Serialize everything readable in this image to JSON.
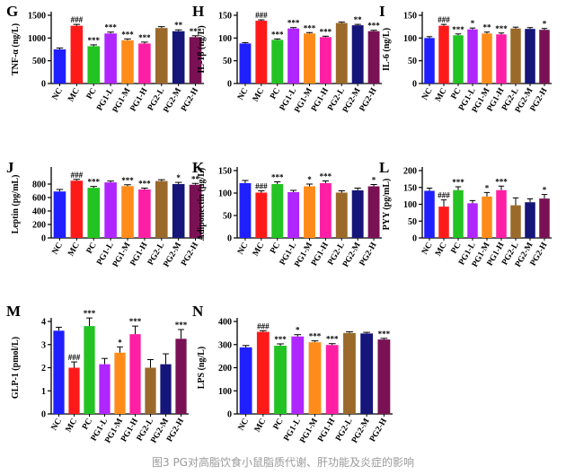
{
  "caption": "图3 PG对高脂饮食小鼠脂质代谢、肝功能及炎症的影响",
  "colors": [
    "#1f1fff",
    "#ff1a1a",
    "#22c322",
    "#b026ff",
    "#ff8c1a",
    "#ff1fa5",
    "#9b6a2a",
    "#15157a",
    "#7a1155"
  ],
  "categories": [
    "NC",
    "MC",
    "PC",
    "PG1-L",
    "PG1-M",
    "PG1-H",
    "PG2-L",
    "PG2-M",
    "PG2-H"
  ],
  "chart_data": [
    {
      "type": "bar",
      "panel": "G",
      "ylabel": "TNF-α (ng/L)",
      "ylim": [
        0,
        1500
      ],
      "yticks": [
        0,
        500,
        1000,
        1500
      ],
      "values": [
        750,
        1270,
        820,
        1100,
        950,
        880,
        1220,
        1150,
        1020
      ],
      "errors": [
        30,
        30,
        30,
        30,
        30,
        30,
        30,
        30,
        30
      ],
      "annotations": [
        "",
        "###",
        "***",
        "***",
        "***",
        "***",
        "",
        "**",
        "***"
      ]
    },
    {
      "type": "bar",
      "panel": "H",
      "ylabel": "IL-1β (ng/L)",
      "ylim": [
        0,
        150
      ],
      "yticks": [
        0,
        50,
        100,
        150
      ],
      "values": [
        88,
        138,
        96,
        121,
        110,
        102,
        133,
        128,
        115
      ],
      "errors": [
        2,
        2,
        2,
        2,
        2,
        2,
        2,
        2,
        2
      ],
      "annotations": [
        "",
        "###",
        "***",
        "***",
        "***",
        "***",
        "",
        "**",
        "***"
      ]
    },
    {
      "type": "bar",
      "panel": "I",
      "ylabel": "IL-6 (ng/L)",
      "ylim": [
        0,
        150
      ],
      "yticks": [
        0,
        50,
        100,
        150
      ],
      "values": [
        100,
        127,
        106,
        119,
        110,
        108,
        121,
        120,
        118
      ],
      "errors": [
        3,
        3,
        3,
        3,
        3,
        3,
        3,
        3,
        3
      ],
      "annotations": [
        "",
        "###",
        "***",
        "*",
        "**",
        "***",
        "",
        "",
        "*"
      ]
    },
    {
      "type": "bar",
      "panel": "J",
      "ylabel": "Leptin (pg/mL)",
      "ylim": [
        0,
        1000
      ],
      "yticks": [
        0,
        200,
        400,
        600,
        800
      ],
      "values": [
        690,
        850,
        745,
        825,
        770,
        720,
        845,
        800,
        790
      ],
      "errors": [
        30,
        20,
        20,
        20,
        20,
        20,
        20,
        25,
        20
      ],
      "annotations": [
        "",
        "###",
        "***",
        "",
        "***",
        "***",
        "",
        "*",
        "**"
      ]
    },
    {
      "type": "bar",
      "panel": "K",
      "ylabel": "Adiponectin (μg/L)",
      "ylim": [
        0,
        150
      ],
      "yticks": [
        0,
        50,
        100,
        150
      ],
      "values": [
        122,
        101,
        120,
        102,
        115,
        122,
        101,
        106,
        115
      ],
      "errors": [
        6,
        4,
        5,
        4,
        5,
        5,
        4,
        5,
        4
      ],
      "annotations": [
        "",
        "###",
        "***",
        "",
        "*",
        "***",
        "",
        "",
        "*"
      ]
    },
    {
      "type": "bar",
      "panel": "L",
      "ylabel": "PYY (pg/mL)",
      "ylim": [
        0,
        200
      ],
      "yticks": [
        0,
        50,
        100,
        150,
        200
      ],
      "values": [
        140,
        93,
        142,
        103,
        123,
        142,
        97,
        106,
        117
      ],
      "errors": [
        8,
        20,
        10,
        8,
        12,
        12,
        22,
        10,
        12
      ],
      "annotations": [
        "",
        "###",
        "***",
        "",
        "*",
        "***",
        "",
        "",
        "*"
      ]
    },
    {
      "type": "bar",
      "panel": "M",
      "ylabel": "GLP-1 (pmol/L)",
      "ylim": [
        0,
        4
      ],
      "yticks": [
        0,
        1,
        2,
        3,
        4
      ],
      "values": [
        3.6,
        2.0,
        3.8,
        2.15,
        2.65,
        3.45,
        2.0,
        2.15,
        3.25
      ],
      "errors": [
        0.15,
        0.25,
        0.35,
        0.25,
        0.25,
        0.35,
        0.35,
        0.45,
        0.4
      ],
      "annotations": [
        "",
        "###",
        "***",
        "",
        "*",
        "***",
        "",
        "",
        "***"
      ]
    },
    {
      "type": "bar",
      "panel": "N",
      "ylabel": "LPS (ng/L)",
      "ylim": [
        0,
        400
      ],
      "yticks": [
        0,
        100,
        200,
        300,
        400
      ],
      "values": [
        288,
        355,
        295,
        335,
        310,
        298,
        350,
        348,
        322
      ],
      "errors": [
        8,
        5,
        8,
        8,
        6,
        6,
        5,
        5,
        5
      ],
      "annotations": [
        "",
        "###",
        "***",
        "*",
        "***",
        "***",
        "",
        "",
        "***"
      ]
    }
  ]
}
